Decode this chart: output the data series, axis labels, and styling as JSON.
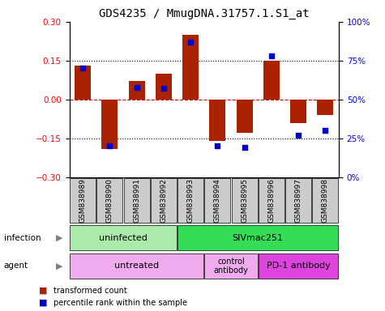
{
  "title": "GDS4235 / MmugDNA.31757.1.S1_at",
  "samples": [
    "GSM838989",
    "GSM838990",
    "GSM838991",
    "GSM838992",
    "GSM838993",
    "GSM838994",
    "GSM838995",
    "GSM838996",
    "GSM838997",
    "GSM838998"
  ],
  "transformed_count": [
    0.13,
    -0.19,
    0.07,
    0.1,
    0.25,
    -0.16,
    -0.13,
    0.15,
    -0.09,
    -0.06
  ],
  "percentile_rank": [
    70,
    20,
    58,
    57,
    87,
    20,
    19,
    78,
    27,
    30
  ],
  "bar_color": "#aa2200",
  "dot_color": "#0000cc",
  "ylim": [
    -0.3,
    0.3
  ],
  "yticks_left": [
    -0.3,
    -0.15,
    0.0,
    0.15,
    0.3
  ],
  "yticks_right": [
    0,
    25,
    50,
    75,
    100
  ],
  "ytick_right_labels": [
    "0%",
    "25%",
    "50%",
    "75%",
    "100%"
  ],
  "hline_color": "#cc0000",
  "infection_colors": [
    "#aaeaaa",
    "#33dd55"
  ],
  "infection_texts": [
    "uninfected",
    "SIVmac251"
  ],
  "agent_colors": [
    "#f0aaee",
    "#f0aaee",
    "#dd44dd"
  ],
  "agent_texts": [
    "untreated",
    "control\nantibody",
    "PD-1 antibody"
  ],
  "legend_labels": [
    "transformed count",
    "percentile rank within the sample"
  ],
  "legend_colors": [
    "#aa2200",
    "#0000cc"
  ],
  "bg_color": "#ffffff",
  "sample_box_color": "#cccccc",
  "title_fontsize": 10
}
